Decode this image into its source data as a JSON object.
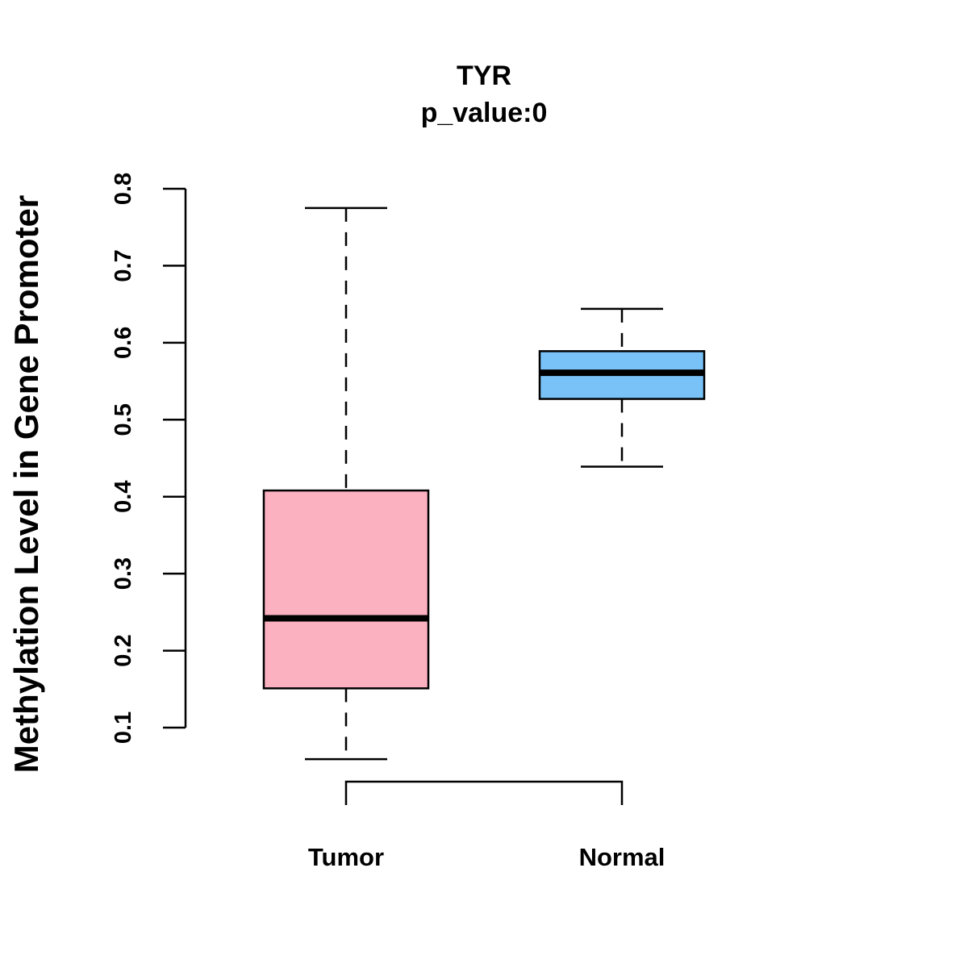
{
  "chart_data": {
    "type": "boxplot",
    "title": "TYR",
    "subtitle": "p_value:0",
    "ylabel": "Methylation Level in Gene Promoter",
    "xlabel": "",
    "ylim": [
      0.1,
      0.8
    ],
    "y_ticks": [
      "0.1",
      "0.2",
      "0.3",
      "0.4",
      "0.5",
      "0.6",
      "0.7",
      "0.8"
    ],
    "groups": [
      {
        "name": "Tumor",
        "color": "#FBB1C0",
        "whisker_low": 0.059,
        "q1": 0.151,
        "median": 0.242,
        "q3": 0.408,
        "whisker_high": 0.775
      },
      {
        "name": "Normal",
        "color": "#79C2F7",
        "whisker_low": 0.439,
        "q1": 0.527,
        "median": 0.561,
        "q3": 0.589,
        "whisker_high": 0.644
      }
    ],
    "comparison_bracket": [
      "Tumor",
      "Normal"
    ]
  }
}
